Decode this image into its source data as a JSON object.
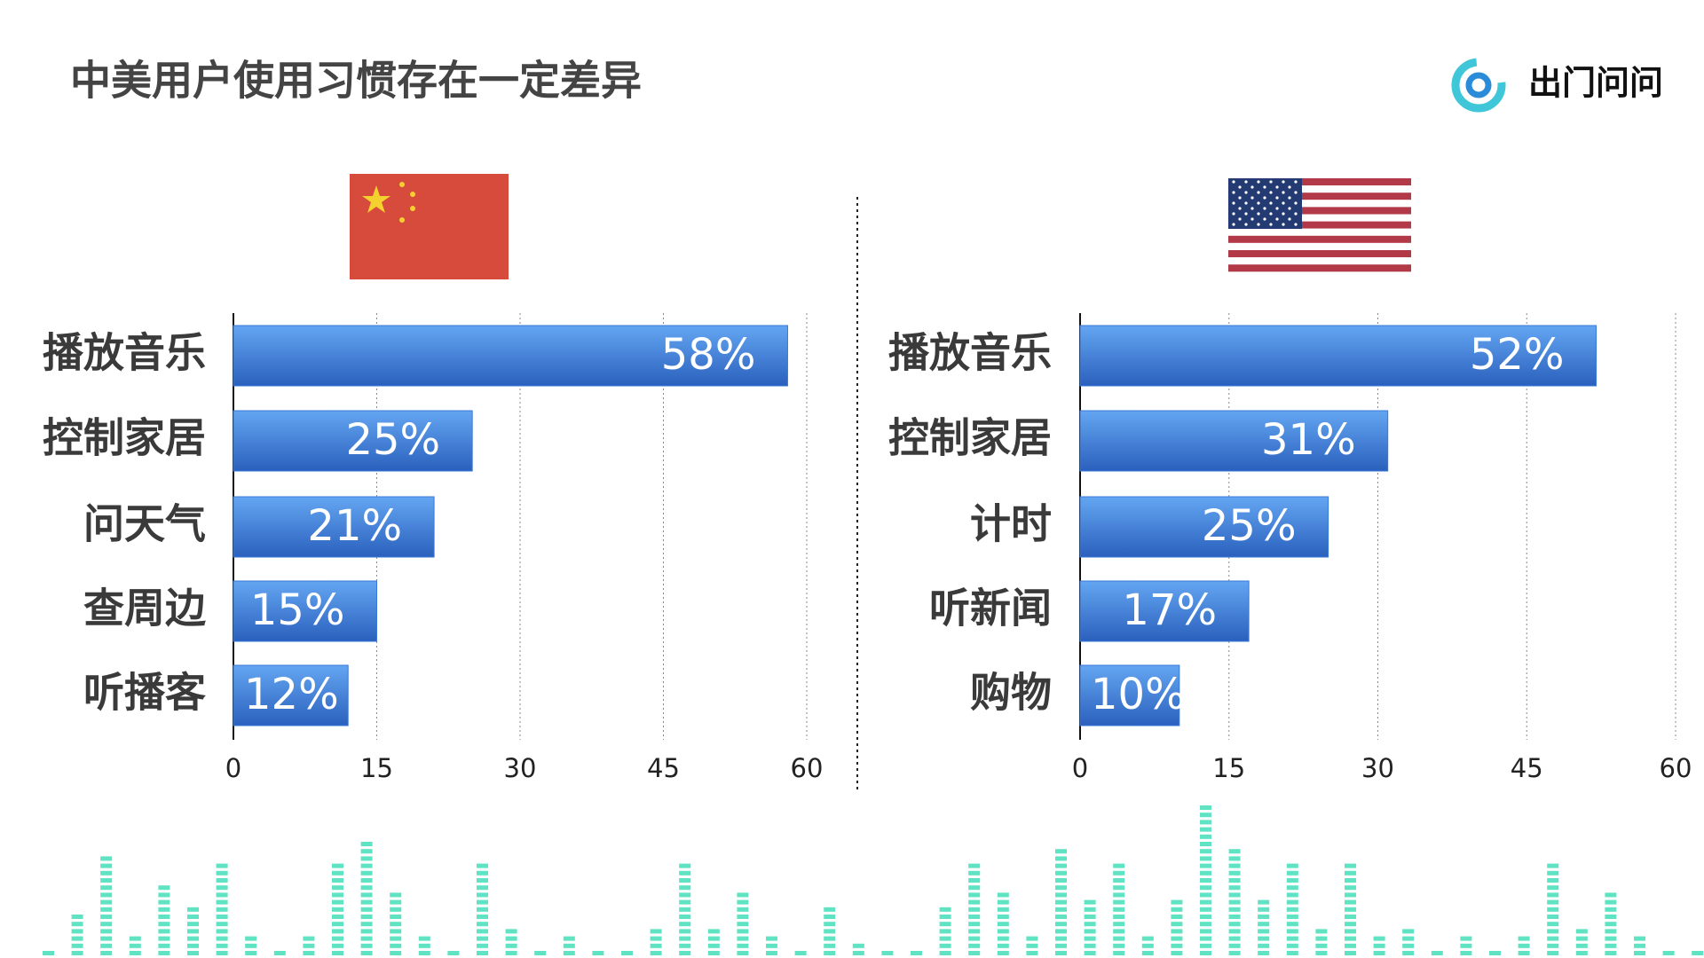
{
  "title": "中美用户使用习惯存在一定差异",
  "logo": "出门问问",
  "chart_data": [
    {
      "type": "bar",
      "orientation": "horizontal",
      "categories": [
        "播放音乐",
        "控制家居",
        "问天气",
        "查周边",
        "听播客"
      ],
      "values": [
        58,
        25,
        21,
        15,
        12
      ],
      "value_labels": [
        "58%",
        "25%",
        "21%",
        "15%",
        "12%"
      ],
      "xlim": [
        0,
        60
      ],
      "xticks": [
        0,
        15,
        30,
        45,
        60
      ],
      "grid": true,
      "color": "#3a78d6"
    },
    {
      "type": "bar",
      "orientation": "horizontal",
      "categories": [
        "播放音乐",
        "控制家居",
        "计时",
        "听新闻",
        "购物"
      ],
      "values": [
        52,
        31,
        25,
        17,
        10
      ],
      "value_labels": [
        "52%",
        "31%",
        "25%",
        "17%",
        "10%"
      ],
      "xlim": [
        0,
        60
      ],
      "xticks": [
        0,
        15,
        30,
        45,
        60
      ],
      "grid": true,
      "color": "#3a78d6"
    }
  ]
}
